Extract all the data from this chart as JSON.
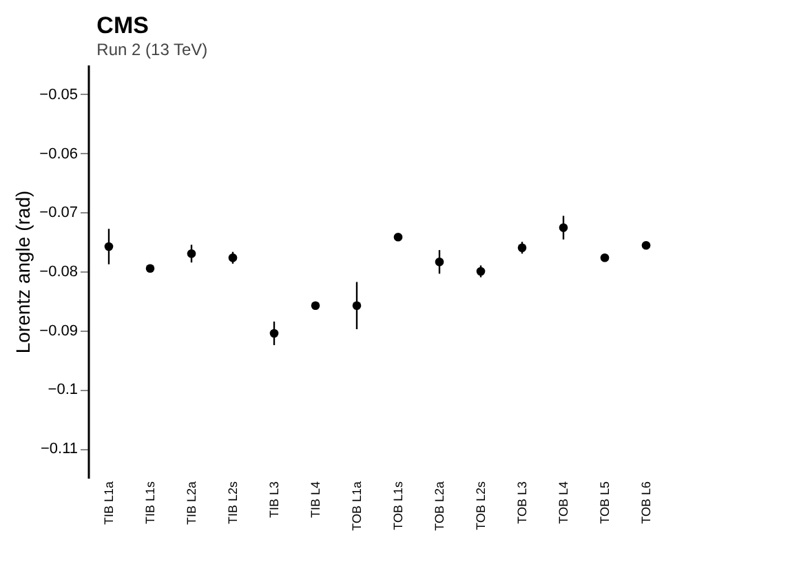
{
  "chart_data": {
    "type": "scatter",
    "title": "CMS",
    "annotations": [
      "Run 2 (13 TeV)"
    ],
    "ylabel": "Lorentz angle (rad)",
    "categories": [
      "TIB L1a",
      "TIB L1s",
      "TIB L2a",
      "TIB L2s",
      "TIB L3",
      "TIB L4",
      "TOB L1a",
      "TOB L1s",
      "TOB L2a",
      "TOB L2s",
      "TOB L3",
      "TOB L4",
      "TOB L5",
      "TOB L6"
    ],
    "series": [
      {
        "color": "#000000",
        "values": [
          -0.0758,
          -0.0795,
          -0.077,
          -0.0777,
          -0.0905,
          -0.0858,
          -0.0858,
          -0.0742,
          -0.0784,
          -0.08,
          -0.076,
          -0.0726,
          -0.0777,
          -0.0756
        ],
        "errors": [
          0.003,
          null,
          0.0015,
          0.001,
          0.002,
          0.0005,
          0.004,
          null,
          0.002,
          0.001,
          0.001,
          0.002,
          null,
          null
        ]
      }
    ],
    "ylim": [
      -0.115,
      -0.045
    ],
    "yticks": [
      -0.05,
      -0.06,
      -0.07,
      -0.08,
      -0.09,
      -0.1,
      -0.11
    ],
    "marker": "circle",
    "grid": false
  }
}
